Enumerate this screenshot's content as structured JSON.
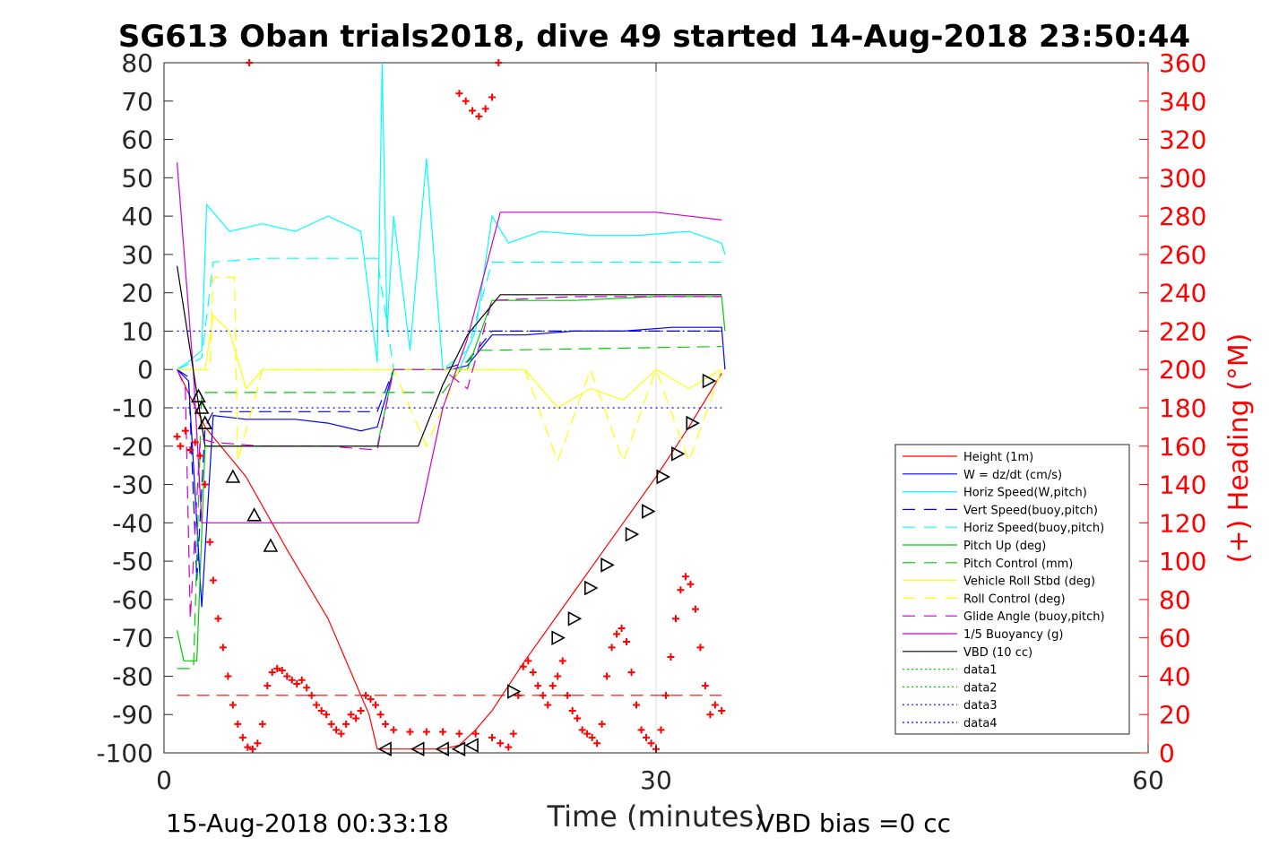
{
  "chart_data": {
    "type": "line",
    "title": "SG613 Oban trials2018, dive 49 started 14-Aug-2018 23:50:44",
    "xlabel": "Time (minutes)",
    "ylabel": "",
    "ylabel_right": "(+) Heading (°M)",
    "xlim": [
      0,
      60
    ],
    "ylim": [
      -100,
      80
    ],
    "ylim_right": [
      0,
      360
    ],
    "xticks": [
      "0",
      "30",
      "60"
    ],
    "yticks": [
      "80",
      "70",
      "60",
      "50",
      "40",
      "30",
      "20",
      "10",
      "0",
      "-10",
      "-20",
      "-30",
      "-40",
      "-50",
      "-60",
      "-70",
      "-80",
      "-90",
      "-100"
    ],
    "yticks_right": [
      "360",
      "340",
      "320",
      "300",
      "280",
      "260",
      "240",
      "220",
      "200",
      "180",
      "160",
      "140",
      "120",
      "100",
      "80",
      "60",
      "40",
      "20",
      "0"
    ],
    "grid": "x-only",
    "legend_position": "bottom-right",
    "footer_left": "15-Aug-2018 00:33:18",
    "footer_right": "VBD bias =0 cc",
    "series": [
      {
        "name": "Height (1m)",
        "color": "#ff0000",
        "style": "solid",
        "x": [
          0.8,
          2.5,
          5,
          7.5,
          10,
          12.5,
          13,
          15,
          17,
          18,
          19,
          20,
          22,
          24,
          26,
          28,
          30,
          32,
          34
        ],
        "y": [
          0,
          -15,
          -28,
          -47,
          -65,
          -90,
          -99,
          -99,
          -99,
          -98,
          -94,
          -89,
          -76,
          -64,
          -52,
          -40,
          -28,
          -15,
          -1
        ]
      },
      {
        "name": "W = dz/dt (cm/s)",
        "color": "#0000ff",
        "style": "solid",
        "x": [
          0.8,
          1.5,
          2.3,
          3,
          5,
          8,
          10,
          12,
          13,
          14,
          16,
          17.5,
          18.5,
          20,
          22,
          25,
          28,
          31,
          34,
          34.2
        ],
        "y": [
          0,
          -3,
          -62,
          -12,
          -13,
          -13,
          -14,
          -16,
          -15,
          0,
          0,
          0,
          1,
          9,
          9,
          10,
          10,
          11,
          11,
          0
        ]
      },
      {
        "name": "Horiz Speed(W,pitch)",
        "color": "#00ffff",
        "style": "solid",
        "x": [
          0.8,
          1.5,
          2.3,
          2.6,
          4,
          6,
          8,
          10,
          12,
          13,
          13.3,
          13.6,
          14,
          15,
          16,
          17,
          18,
          19,
          20,
          21,
          23,
          26,
          29,
          32,
          34,
          34.2
        ],
        "y": [
          0,
          2,
          5,
          43,
          36,
          38,
          36,
          40,
          36,
          2,
          80,
          10,
          40,
          5,
          55,
          0,
          0,
          10,
          40,
          33,
          36,
          35,
          35,
          36,
          33,
          30
        ]
      },
      {
        "name": "Vert Speed(buoy,pitch)",
        "color": "#0000ff",
        "style": "dashed",
        "x": [
          0.8,
          1.5,
          2,
          2.5,
          3,
          6,
          10,
          13,
          14,
          17,
          18.5,
          20,
          25,
          30,
          34
        ],
        "y": [
          0,
          -2,
          -55,
          -15,
          -11,
          -11,
          -11,
          -11,
          0,
          0,
          2,
          10,
          10,
          10,
          10
        ]
      },
      {
        "name": "Horiz Speed(buoy,pitch)",
        "color": "#00ffff",
        "style": "dashed",
        "x": [
          0.8,
          2.3,
          3,
          6,
          10,
          13,
          14,
          17,
          18.5,
          20,
          25,
          30,
          34
        ],
        "y": [
          0,
          3,
          28,
          29,
          29,
          29,
          0,
          0,
          5,
          28,
          28,
          28,
          28
        ]
      },
      {
        "name": "Pitch Up (deg)",
        "color": "#00cc00",
        "style": "solid",
        "x": [
          0.8,
          1.2,
          2,
          2.5,
          3,
          6,
          10,
          13,
          14,
          17,
          18.5,
          20,
          25,
          30,
          34,
          34.2
        ],
        "y": [
          -68,
          -76,
          -76,
          -20,
          -20,
          -20,
          -20,
          -20,
          0,
          0,
          0,
          18,
          18,
          19,
          19,
          10
        ]
      },
      {
        "name": "Pitch Control (mm)",
        "color": "#00cc00",
        "style": "dashed",
        "x": [
          0.8,
          1.8,
          2.3,
          3,
          13,
          14,
          17,
          19,
          20,
          34
        ],
        "y": [
          -78,
          -78,
          -6,
          -6,
          -6,
          -6,
          -6,
          5,
          5,
          6
        ]
      },
      {
        "name": "Vehicle Roll Stbd (deg)",
        "color": "#ffff00",
        "style": "solid",
        "x": [
          0.8,
          2.5,
          3,
          4,
          5,
          6,
          8,
          10,
          12,
          13,
          14,
          16,
          18,
          20,
          22,
          24,
          26,
          28,
          30,
          32,
          34
        ],
        "y": [
          0,
          0,
          14,
          10,
          -5,
          0,
          0,
          0,
          0,
          0,
          0,
          0,
          0,
          0,
          0,
          -10,
          -5,
          -8,
          0,
          -5,
          0
        ]
      },
      {
        "name": "Roll Control (deg)",
        "color": "#ffff00",
        "style": "dashed",
        "x": [
          0.8,
          2.8,
          3,
          4.3,
          4.5,
          6,
          10,
          13,
          14,
          16,
          18,
          20,
          22,
          24,
          26,
          28,
          30,
          32,
          34
        ],
        "y": [
          0,
          0,
          24,
          24,
          -24,
          0,
          0,
          0,
          0,
          -20,
          0,
          0,
          0,
          -24,
          0,
          -24,
          0,
          -24,
          0
        ]
      },
      {
        "name": "Glide Angle (buoy,pitch)",
        "color": "#cc00cc",
        "style": "dashed",
        "x": [
          0.8,
          1.3,
          1.6,
          2.2,
          3,
          6,
          10,
          13,
          14,
          17,
          18.5,
          20,
          25,
          30,
          34
        ],
        "y": [
          0,
          -5,
          -65,
          -18,
          -19,
          -20,
          -20,
          -21,
          0,
          0,
          -5,
          18,
          19,
          19,
          19
        ]
      },
      {
        "name": "1/5 Buoyancy (g)",
        "color": "#cc00cc",
        "style": "solid",
        "x": [
          0.8,
          1.8,
          2.3,
          3,
          8,
          12,
          15.5,
          17,
          18.5,
          20.5,
          25,
          30,
          34
        ],
        "y": [
          54,
          -1,
          -40,
          -40,
          -40,
          -40,
          -40,
          -10,
          8,
          41,
          41,
          41,
          39
        ]
      },
      {
        "name": "VBD (10 cc)",
        "color": "#000000",
        "style": "solid",
        "x": [
          0.8,
          2.5,
          3,
          10,
          13,
          15.5,
          17,
          18.5,
          20.5,
          25,
          30,
          34
        ],
        "y": [
          27,
          -20,
          -20,
          -20,
          -20,
          -20,
          -4,
          9,
          19.5,
          19.5,
          19.5,
          19.5
        ]
      },
      {
        "name": "data1",
        "color": "#00cc00",
        "style": "dotted",
        "x": [],
        "y": []
      },
      {
        "name": "data2",
        "color": "#00cc00",
        "style": "dotted",
        "x": [],
        "y": []
      },
      {
        "name": "data3",
        "color": "#0000ff",
        "style": "dotted",
        "x": [
          0.8,
          34
        ],
        "y": [
          10,
          10
        ]
      },
      {
        "name": "data4",
        "color": "#0000ff",
        "style": "dotted",
        "x": [
          0.8,
          34
        ],
        "y": [
          -10,
          -10
        ]
      }
    ],
    "reference_line": {
      "color": "#ff0000",
      "style": "dashed",
      "x": [
        0.8,
        34
      ],
      "y": [
        -85,
        -85
      ]
    },
    "heading_points": {
      "color": "#ff0000",
      "marker": "+",
      "x": [
        0.8,
        1,
        1.3,
        1.6,
        1.9,
        2.2,
        2.5,
        2.8,
        3,
        3.3,
        3.6,
        3.9,
        4.2,
        4.5,
        4.8,
        5.1,
        5.4,
        5.7,
        6,
        6.3,
        6.6,
        6.9,
        7.2,
        7.5,
        7.8,
        8.1,
        8.4,
        8.7,
        9,
        9.3,
        9.6,
        9.9,
        10.2,
        10.5,
        10.8,
        11.1,
        11.4,
        11.7,
        12,
        12.3,
        12.6,
        12.9,
        13.2,
        13.5,
        14,
        15,
        16,
        17,
        18,
        19,
        20,
        20.5,
        21,
        21.3,
        21.6,
        21.9,
        22.2,
        22.5,
        22.8,
        23.1,
        23.4,
        23.7,
        24,
        24.3,
        24.6,
        24.9,
        25.2,
        25.5,
        25.8,
        26.1,
        26.4,
        26.7,
        27,
        27.3,
        27.6,
        27.9,
        28.2,
        28.5,
        28.8,
        29.1,
        29.4,
        29.7,
        30,
        30.3,
        30.6,
        30.9,
        31.2,
        31.5,
        31.8,
        32.1,
        32.4,
        32.7,
        33,
        33.3,
        33.6,
        34,
        5.2,
        18,
        18.4,
        18.8,
        19.2,
        19.6,
        20,
        20.4
      ],
      "y": [
        165,
        160,
        168,
        158,
        162,
        155,
        140,
        110,
        90,
        70,
        55,
        40,
        25,
        15,
        8,
        3,
        2,
        5,
        15,
        35,
        42,
        44,
        43,
        40,
        38,
        36,
        38,
        34,
        30,
        25,
        22,
        20,
        15,
        12,
        10,
        15,
        20,
        18,
        22,
        30,
        28,
        25,
        20,
        15,
        12,
        11,
        11,
        11,
        10,
        10,
        8,
        5,
        3,
        10,
        30,
        45,
        48,
        42,
        35,
        30,
        25,
        35,
        40,
        48,
        30,
        22,
        18,
        12,
        10,
        8,
        5,
        15,
        40,
        55,
        62,
        65,
        58,
        42,
        25,
        12,
        8,
        5,
        2,
        12,
        30,
        50,
        70,
        85,
        92,
        88,
        75,
        55,
        35,
        20,
        25,
        22,
        360,
        344,
        340,
        335,
        332,
        336,
        342,
        360
      ]
    },
    "markers": {
      "color": "#000000",
      "marker": "triangle",
      "x": [
        2.1,
        2.3,
        2.5,
        4.2,
        5.5,
        6.5,
        13.5,
        15.5,
        17,
        18,
        18.8,
        21.3,
        24,
        25,
        26,
        27,
        28.5,
        29.5,
        30.4,
        31.3,
        32.2,
        33.2
      ],
      "y": [
        -7,
        -10,
        -14,
        -28,
        -38,
        -46,
        -99,
        -99,
        -99,
        -99,
        -98,
        -84,
        -70,
        -65,
        -57,
        -51,
        -43,
        -37,
        -28,
        -22,
        -14,
        -3
      ]
    }
  }
}
